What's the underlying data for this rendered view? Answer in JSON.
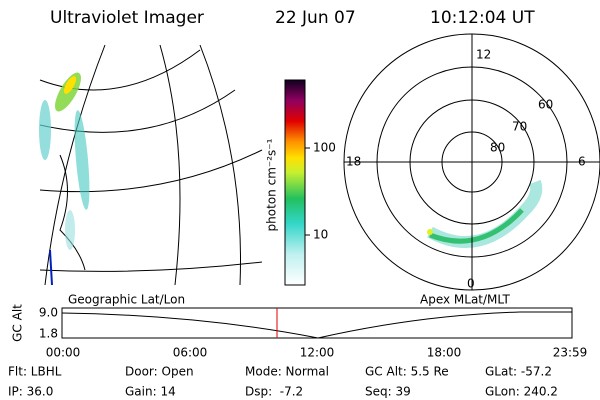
{
  "header": {
    "title": "Ultraviolet Imager",
    "date": "22 Jun 07",
    "time": "10:12:04 UT"
  },
  "geo_panel": {
    "label": "Geographic Lat/Lon"
  },
  "colorbar": {
    "label": "photon cm⁻²s⁻¹",
    "ticks": [
      "100",
      "10"
    ]
  },
  "polar_panel": {
    "label": "Apex MLat/MLT",
    "mlt_labels": [
      "12",
      "18",
      "6",
      "0"
    ],
    "lat_labels": [
      "60",
      "70",
      "80"
    ]
  },
  "altitude_plot": {
    "axis_label": "GC Alt",
    "y_labels": [
      "9.0",
      "1.8"
    ],
    "x_labels": [
      "00:00",
      "06:00",
      "12:00",
      "18:00",
      "23:59"
    ]
  },
  "info": [
    [
      "Flt: LBHL",
      "IP: 36.0"
    ],
    [
      "Door: Open",
      "Gain: 14"
    ],
    [
      "Mode: Normal",
      "Dsp:  -7.2"
    ],
    [
      "GC Alt: 5.5 Re",
      "Seq: 39"
    ],
    [
      "GLat: -57.2",
      "GLon: 240.2"
    ]
  ]
}
